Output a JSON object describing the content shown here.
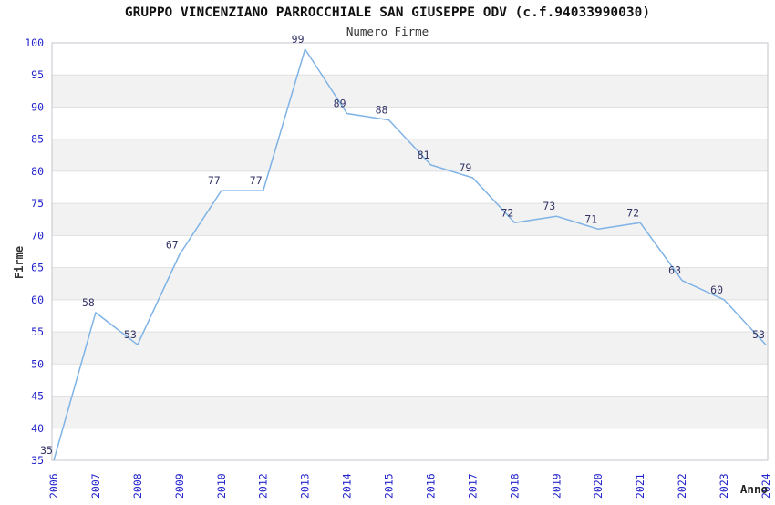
{
  "chart_data": {
    "type": "line",
    "title": "GRUPPO VINCENZIANO PARROCCHIALE SAN GIUSEPPE ODV (c.f.94033990030)",
    "subtitle": "Numero Firme",
    "xlabel": "Anno",
    "ylabel": "Firme",
    "categories": [
      "2006",
      "2007",
      "2008",
      "2009",
      "2010",
      "2012",
      "2013",
      "2014",
      "2015",
      "2016",
      "2017",
      "2018",
      "2019",
      "2020",
      "2021",
      "2022",
      "2023",
      "2024"
    ],
    "values": [
      35,
      58,
      53,
      67,
      77,
      77,
      99,
      89,
      88,
      81,
      79,
      72,
      73,
      71,
      72,
      63,
      60,
      53
    ],
    "ylim": [
      35,
      100
    ],
    "ytick_step": 5,
    "grid": true,
    "banded_background": true,
    "legend_position": "none",
    "markers": false,
    "data_labels_shown": true,
    "colors": {
      "line": "#7fb3e6",
      "tick_label": "#2222cc",
      "data_label": "#333366",
      "band": "#f2f2f2",
      "gridline": "#e0e0e0",
      "border": "#c6c6cc",
      "title": "#111111",
      "axis_title": "#333333",
      "background": "#ffffff"
    }
  }
}
